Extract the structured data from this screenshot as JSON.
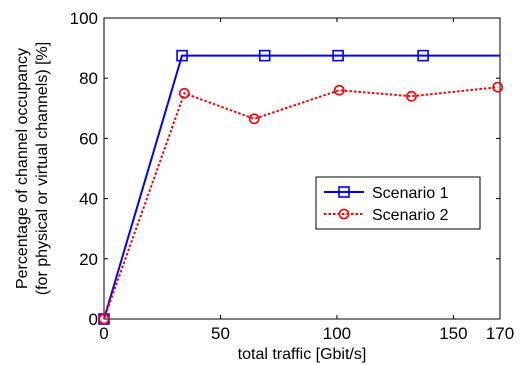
{
  "chart_data": {
    "type": "line",
    "xlabel": "total traffic [Gbit/s]",
    "ylabel_lines": [
      "Percentage of channel occupancy",
      "(for physical or virtual channels) [%]"
    ],
    "xlim": [
      0,
      170
    ],
    "ylim": [
      0,
      100
    ],
    "xticks": [
      0,
      50,
      100,
      150,
      170
    ],
    "yticks": [
      0,
      20,
      40,
      60,
      80,
      100
    ],
    "grid": false,
    "legend_position": "center-right",
    "series": [
      {
        "name": "Scenario 1",
        "color": "#0000ff",
        "line_style": "solid",
        "marker": "square",
        "x": [
          0,
          33.5,
          69,
          100.5,
          137,
          170
        ],
        "y": [
          0,
          87.5,
          87.5,
          87.5,
          87.5,
          87.5
        ],
        "marker_x": [
          0,
          33.5,
          69,
          100.5,
          137
        ]
      },
      {
        "name": "Scenario 2",
        "color": "#ff0000",
        "line_style": "dotted",
        "marker": "circle",
        "x": [
          0,
          34.5,
          64.5,
          101,
          132,
          169
        ],
        "y": [
          0,
          75,
          66.5,
          76,
          74,
          77
        ],
        "marker_x": [
          0,
          34.5,
          64.5,
          101,
          132,
          169
        ]
      }
    ]
  }
}
